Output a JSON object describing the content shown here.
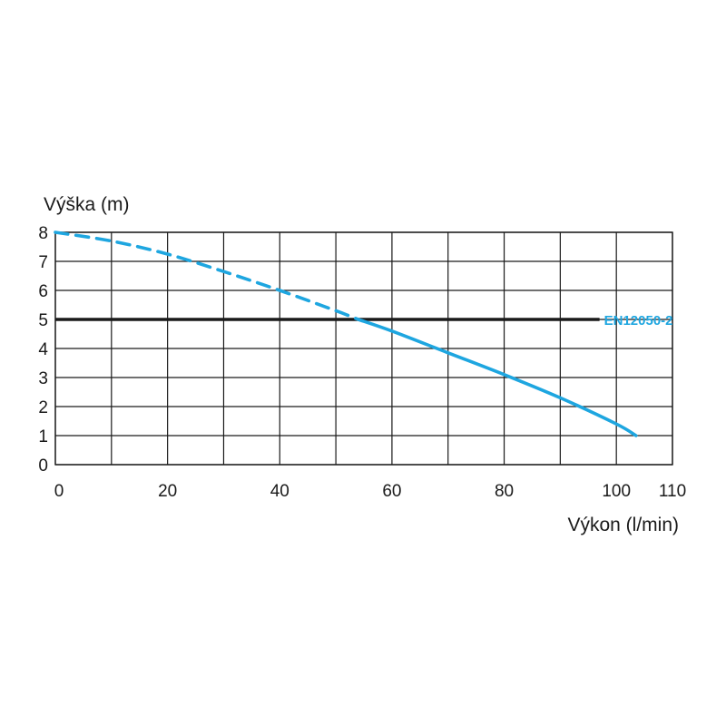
{
  "chart_data": {
    "type": "line",
    "title": "",
    "ylabel": "Výška (m)",
    "xlabel": "Výkon (l/min)",
    "xlim": [
      0,
      110
    ],
    "ylim": [
      0,
      8
    ],
    "x_ticks": [
      0,
      20,
      40,
      60,
      80,
      100,
      110
    ],
    "x_gridlines": [
      0,
      10,
      20,
      30,
      40,
      50,
      60,
      70,
      80,
      90,
      100,
      110
    ],
    "y_ticks": [
      0,
      1,
      2,
      3,
      4,
      5,
      6,
      7,
      8
    ],
    "grid": true,
    "series": [
      {
        "style": "dashed",
        "color": "#1ea6e0",
        "x": [
          0,
          10,
          20,
          30,
          40,
          50,
          54
        ],
        "y": [
          8,
          7.7,
          7.25,
          6.65,
          6.0,
          5.3,
          5.0
        ]
      },
      {
        "style": "solid",
        "color": "#1ea6e0",
        "x": [
          54,
          60,
          70,
          80,
          90,
          100,
          103.5
        ],
        "y": [
          5.0,
          4.6,
          3.85,
          3.1,
          2.3,
          1.4,
          1.0
        ]
      }
    ],
    "reference_line": {
      "label": "EN12050-2",
      "y": 5,
      "x_range": [
        0,
        97
      ],
      "color": "#1a1a1a",
      "label_color": "#1ea6e0"
    }
  }
}
